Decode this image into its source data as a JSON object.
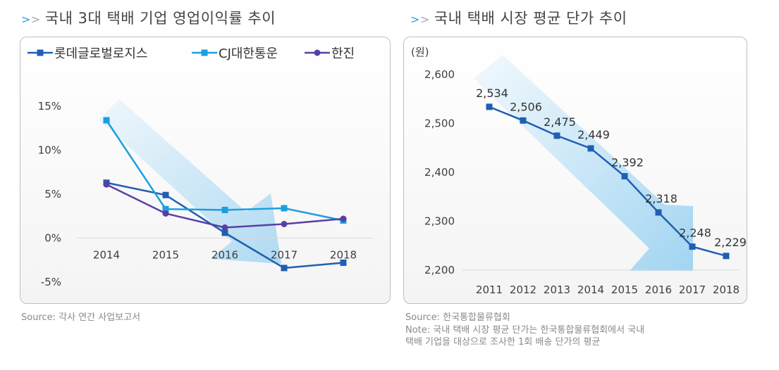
{
  "left": {
    "title_prefix": ">",
    "title_prefix2": ">",
    "title": "국내 3대 택배 기업 영업이익률 추이",
    "source": "Source: 각사 연간 사업보고서"
  },
  "right": {
    "title_prefix": ">",
    "title_prefix2": ">",
    "title": "국내 택배 시장 평균 단가 추이",
    "source": "Source: 한국통합물류협회",
    "note_line1": "Note: 국내 택배 시장 평균 단가는 한국통합물류협회에서 국내",
    "note_line2": "택배 기업을 대상으로 조사한 1회 배송 단가의 평균"
  },
  "colors": {
    "lotte": "#1f5fb3",
    "cj": "#1c9fe0",
    "hanjin": "#5a3fa3",
    "price": "#1f5fb3"
  },
  "chart_data": [
    {
      "type": "line",
      "title": "국내 3대 택배 기업 영업이익률 추이",
      "categories": [
        "2014",
        "2015",
        "2016",
        "2017",
        "2018"
      ],
      "series": [
        {
          "name": "롯데글로벌로지스",
          "values": [
            6.3,
            4.9,
            0.6,
            -3.4,
            -2.8
          ]
        },
        {
          "name": "CJ대한통운",
          "values": [
            13.4,
            3.3,
            3.2,
            3.4,
            2.0
          ]
        },
        {
          "name": "한진",
          "values": [
            6.1,
            2.8,
            1.2,
            1.6,
            2.2
          ]
        }
      ],
      "yticks": [
        "15%",
        "10%",
        "5%",
        "0%",
        "-5%"
      ],
      "ylim": [
        -5,
        15
      ],
      "legend": "top"
    },
    {
      "type": "line",
      "title": "국내 택배 시장 평균 단가 추이",
      "unit_label": "(원)",
      "categories": [
        "2011",
        "2012",
        "2013",
        "2014",
        "2015",
        "2016",
        "2017",
        "2018"
      ],
      "values": [
        2534,
        2506,
        2475,
        2449,
        2392,
        2318,
        2248,
        2229
      ],
      "data_labels": [
        "2,534",
        "2,506",
        "2,475",
        "2,449",
        "2,392",
        "2,318",
        "2,248",
        "2,229"
      ],
      "yticks": [
        "2,600",
        "2,500",
        "2,400",
        "2,300",
        "2,200"
      ],
      "ylim": [
        2200,
        2600
      ]
    }
  ]
}
